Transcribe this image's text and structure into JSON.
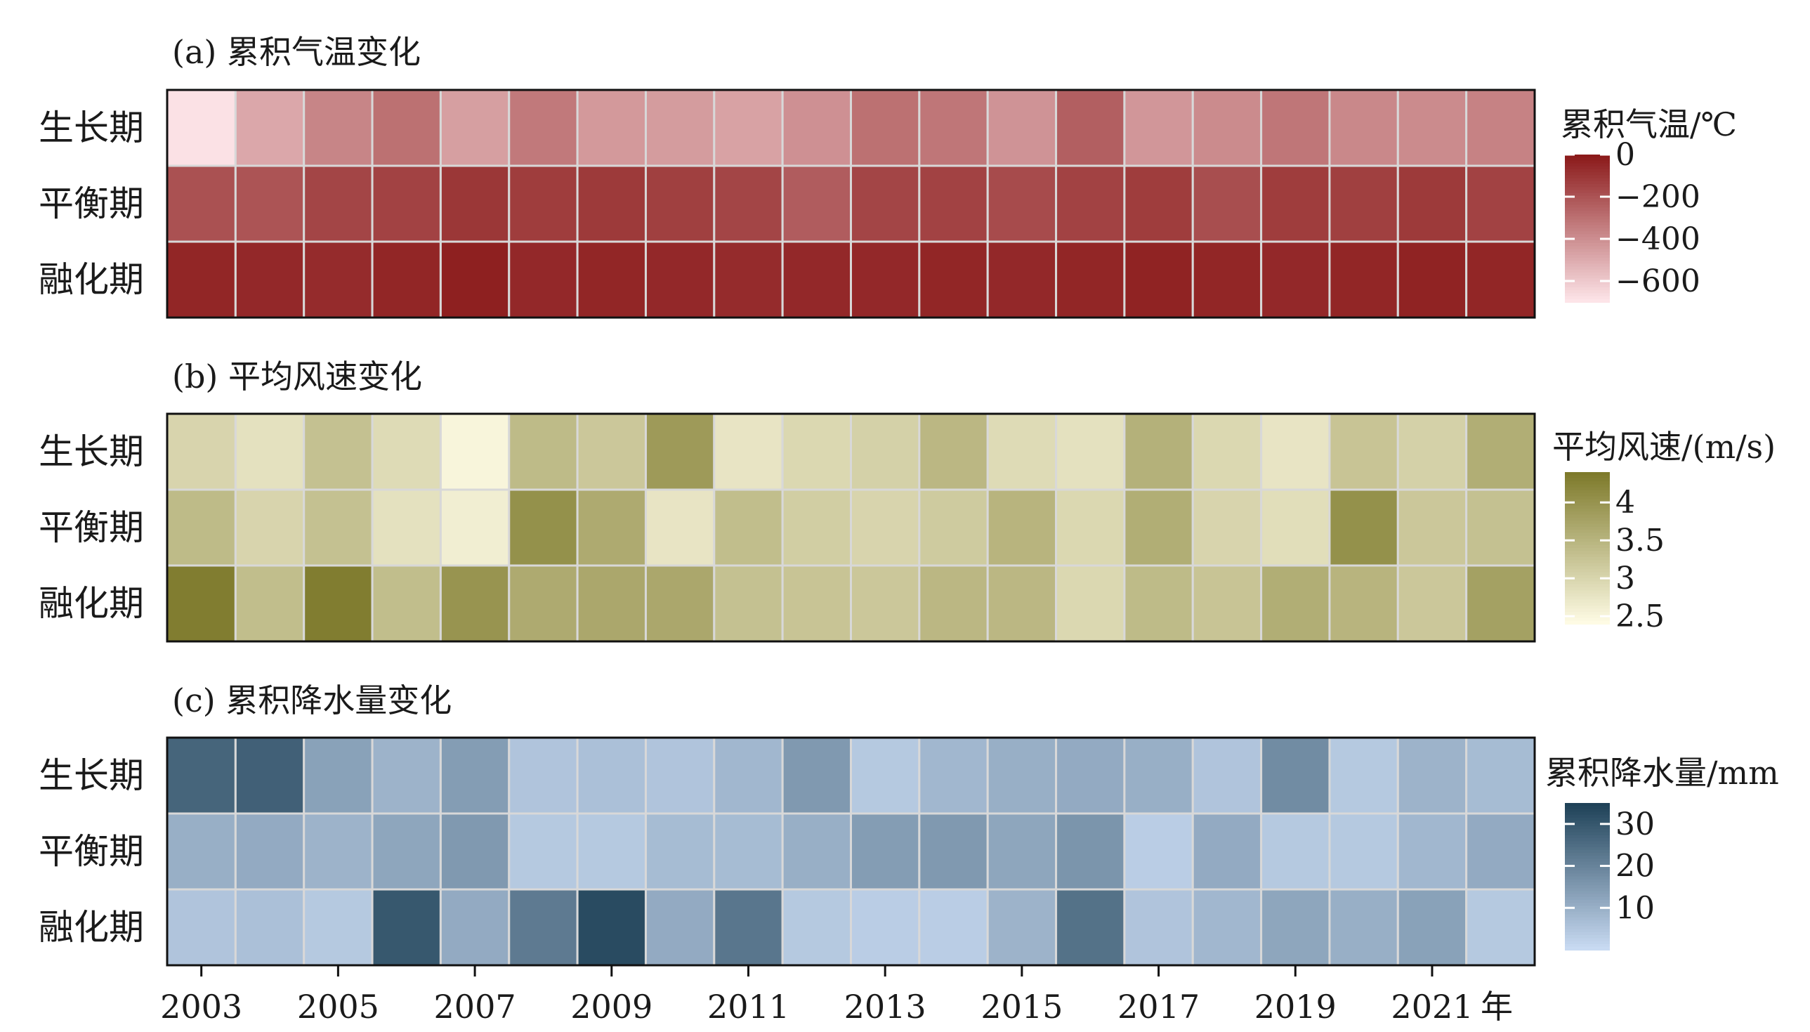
{
  "figure": {
    "year_axis_unit": "年",
    "row_labels": [
      "生长期",
      "平衡期",
      "融化期"
    ],
    "x_tick_labels": [
      "2003",
      "2005",
      "2007",
      "2009",
      "2011",
      "2013",
      "2015",
      "2017",
      "2019",
      "2021"
    ]
  },
  "chart_data": [
    {
      "type": "heatmap",
      "panel_title": "(a) 累积气温变化",
      "legend_title": "累积气温/℃",
      "years": [
        2003,
        2004,
        2005,
        2006,
        2007,
        2008,
        2009,
        2010,
        2011,
        2012,
        2013,
        2014,
        2015,
        2016,
        2017,
        2018,
        2019,
        2020,
        2021,
        2022
      ],
      "rows": [
        "生长期",
        "平衡期",
        "融化期"
      ],
      "legend_ticks": [
        0,
        -200,
        -400,
        -600
      ],
      "range": [
        -700,
        0
      ],
      "color_low": "#fde4e8",
      "color_high": "#8b1a1a",
      "values": [
        [
          -690,
          -490,
          -370,
          -300,
          -460,
          -330,
          -440,
          -450,
          -470,
          -410,
          -300,
          -320,
          -420,
          -240,
          -430,
          -390,
          -320,
          -380,
          -390,
          -360
        ],
        [
          -190,
          -200,
          -150,
          -140,
          -100,
          -120,
          -110,
          -130,
          -150,
          -230,
          -150,
          -140,
          -170,
          -140,
          -120,
          -180,
          -120,
          -130,
          -110,
          -140
        ],
        [
          -40,
          -50,
          -60,
          -40,
          -20,
          -50,
          -40,
          -50,
          -60,
          -50,
          -50,
          -40,
          -50,
          -40,
          -30,
          -40,
          -50,
          -40,
          -30,
          -40
        ]
      ]
    },
    {
      "type": "heatmap",
      "panel_title": "(b) 平均风速变化",
      "legend_title": "平均风速/(m/s)",
      "years": [
        2003,
        2004,
        2005,
        2006,
        2007,
        2008,
        2009,
        2010,
        2011,
        2012,
        2013,
        2014,
        2015,
        2016,
        2017,
        2018,
        2019,
        2020,
        2021,
        2022
      ],
      "rows": [
        "生长期",
        "平衡期",
        "融化期"
      ],
      "legend_ticks": [
        4.0,
        3.5,
        3.0,
        2.5
      ],
      "range": [
        2.4,
        4.4
      ],
      "color_low": "#fefbe4",
      "color_high": "#7e7a2b",
      "values": [
        [
          3.0,
          2.8,
          3.3,
          2.9,
          2.5,
          3.4,
          3.2,
          3.9,
          2.75,
          2.95,
          3.05,
          3.45,
          2.9,
          2.8,
          3.55,
          2.95,
          2.75,
          3.25,
          3.05,
          3.6
        ],
        [
          3.4,
          3.0,
          3.3,
          2.8,
          2.6,
          4.05,
          3.65,
          2.75,
          3.35,
          3.1,
          3.0,
          3.15,
          3.5,
          2.95,
          3.6,
          3.0,
          2.85,
          4.05,
          3.2,
          3.3
        ],
        [
          4.35,
          3.35,
          4.35,
          3.35,
          4.0,
          3.65,
          3.7,
          3.7,
          3.3,
          3.25,
          3.2,
          3.45,
          3.45,
          2.95,
          3.4,
          3.25,
          3.6,
          3.5,
          3.2,
          3.8
        ]
      ]
    },
    {
      "type": "heatmap",
      "panel_title": "(c) 累积降水量变化",
      "legend_title": "累积降水量/mm",
      "years": [
        2003,
        2004,
        2005,
        2006,
        2007,
        2008,
        2009,
        2010,
        2011,
        2012,
        2013,
        2014,
        2015,
        2016,
        2017,
        2018,
        2019,
        2020,
        2021,
        2022
      ],
      "rows": [
        "生长期",
        "平衡期",
        "融化期"
      ],
      "legend_ticks": [
        30,
        20,
        10
      ],
      "range": [
        0,
        35
      ],
      "color_low": "#c8daf2",
      "color_high": "#1f4258",
      "values": [
        [
          27,
          28,
          13,
          9,
          14,
          5,
          6,
          5,
          8,
          15,
          4,
          8,
          10,
          11,
          10,
          5,
          18,
          4,
          9,
          7
        ],
        [
          10,
          11,
          9,
          12,
          15,
          4,
          4,
          7,
          7,
          10,
          14,
          15,
          12,
          16,
          3,
          11,
          4,
          4,
          8,
          11
        ],
        [
          5,
          6,
          4,
          30,
          11,
          22,
          33,
          11,
          23,
          4,
          3,
          3,
          9,
          24,
          5,
          8,
          12,
          10,
          13,
          4
        ]
      ]
    }
  ]
}
